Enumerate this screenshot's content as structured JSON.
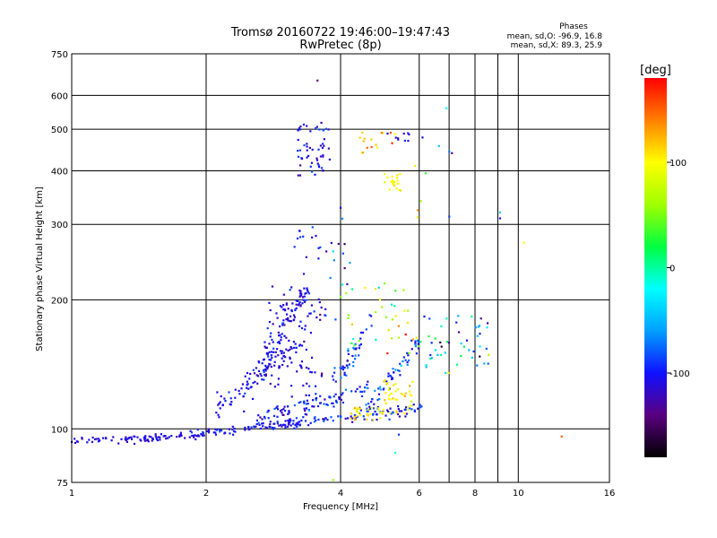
{
  "chart_data": {
    "type": "scatter",
    "title": "Tromsø 20160722 19:46:00–19:47:43",
    "subtitle": "RwPretec (8p)",
    "xlabel": "Frequency [MHz]",
    "ylabel": "Stationary phase Virtual Height [km]",
    "x_scale": "log",
    "y_scale": "log",
    "xlim": [
      1,
      16
    ],
    "ylim": [
      75,
      750
    ],
    "x_ticks": [
      1,
      2,
      4,
      6,
      8,
      10,
      16
    ],
    "x_tick_labels": [
      "1",
      "2",
      "4",
      "6",
      "8",
      "10",
      "16"
    ],
    "x_grid": [
      2,
      4,
      6,
      7,
      8,
      9,
      10
    ],
    "y_ticks": [
      75,
      100,
      200,
      300,
      400,
      500,
      600,
      750
    ],
    "y_tick_labels": [
      "75",
      "100",
      "200",
      "300",
      "400",
      "500",
      "600",
      "750"
    ],
    "y_grid": [
      100,
      200,
      300,
      400,
      500,
      600
    ],
    "grid": true,
    "phases_box": {
      "heading": "Phases",
      "line1": "mean, sd,O: -96.9, 16.8",
      "line2": "mean, sd,X:  89.3, 25.9"
    },
    "colorbar": {
      "label": "[deg]",
      "range": [
        -180,
        180
      ],
      "ticks": [
        -100,
        0,
        100
      ],
      "tick_labels": [
        "-100",
        "0",
        "100"
      ],
      "colors": [
        "#000000",
        "#5a0080",
        "#1010ff",
        "#00a0ff",
        "#00ffff",
        "#00ff40",
        "#a0ff00",
        "#ffff00",
        "#ff8000",
        "#ff0000"
      ]
    },
    "traces": [
      {
        "kind": "line",
        "x0": 1.0,
        "x1": 2.0,
        "y0": 93,
        "y1": 97,
        "jitter": 1.2,
        "n": 90,
        "phase": -110,
        "phase_sd": 10
      },
      {
        "kind": "line",
        "x0": 1.85,
        "x1": 3.3,
        "y0": 97,
        "y1": 104,
        "jitter": 1.5,
        "n": 80,
        "phase": -105,
        "phase_sd": 15
      },
      {
        "kind": "line",
        "x0": 3.0,
        "x1": 6.2,
        "y0": 103,
        "y1": 112,
        "jitter": 2.5,
        "n": 90,
        "phase": -100,
        "phase_sd": 20
      },
      {
        "kind": "line",
        "x0": 2.1,
        "x1": 3.3,
        "y0": 112,
        "y1": 160,
        "jitter": 5,
        "n": 70,
        "phase": -105,
        "phase_sd": 12
      },
      {
        "kind": "line",
        "x0": 2.4,
        "x1": 3.4,
        "y0": 118,
        "y1": 215,
        "jitter": 8,
        "n": 80,
        "phase": -105,
        "phase_sd": 15
      },
      {
        "kind": "line",
        "x0": 2.6,
        "x1": 3.6,
        "y0": 105,
        "y1": 120,
        "jitter": 3,
        "n": 50,
        "phase": -100,
        "phase_sd": 20
      },
      {
        "kind": "line",
        "x0": 3.3,
        "x1": 4.6,
        "y0": 110,
        "y1": 125,
        "jitter": 3,
        "n": 50,
        "phase": -100,
        "phase_sd": 25
      },
      {
        "kind": "line",
        "x0": 3.8,
        "x1": 4.7,
        "y0": 125,
        "y1": 180,
        "jitter": 8,
        "n": 45,
        "phase": -95,
        "phase_sd": 25
      },
      {
        "kind": "line",
        "x0": 4.5,
        "x1": 6.0,
        "y0": 108,
        "y1": 160,
        "jitter": 5,
        "n": 55,
        "phase": -90,
        "phase_sd": 30
      },
      {
        "kind": "cloud",
        "x0": 2.7,
        "x1": 3.7,
        "y0": 125,
        "y1": 215,
        "n": 110,
        "phase": -110,
        "phase_sd": 18
      },
      {
        "kind": "cloud",
        "x0": 3.2,
        "x1": 3.8,
        "y0": 390,
        "y1": 520,
        "n": 55,
        "phase": -105,
        "phase_sd": 20
      },
      {
        "kind": "cloud",
        "x0": 3.1,
        "x1": 3.6,
        "y0": 230,
        "y1": 300,
        "n": 12,
        "phase": -100,
        "phase_sd": 20
      },
      {
        "kind": "cloud",
        "x0": 4.2,
        "x1": 5.0,
        "y0": 105,
        "y1": 112,
        "n": 30,
        "phase": 110,
        "phase_sd": 15
      },
      {
        "kind": "cloud",
        "x0": 5.0,
        "x1": 5.8,
        "y0": 108,
        "y1": 130,
        "n": 40,
        "phase": 105,
        "phase_sd": 15
      },
      {
        "kind": "cloud",
        "x0": 5.0,
        "x1": 5.5,
        "y0": 360,
        "y1": 400,
        "n": 22,
        "phase": 100,
        "phase_sd": 15
      },
      {
        "kind": "cloud",
        "x0": 4.4,
        "x1": 5.4,
        "y0": 440,
        "y1": 500,
        "n": 16,
        "phase": 120,
        "phase_sd": 40
      },
      {
        "kind": "cloud",
        "x0": 4.0,
        "x1": 6.0,
        "y0": 150,
        "y1": 220,
        "n": 40,
        "phase": 60,
        "phase_sd": 80
      },
      {
        "kind": "cloud",
        "x0": 6.0,
        "x1": 8.6,
        "y0": 135,
        "y1": 185,
        "n": 50,
        "phase": -60,
        "phase_sd": 80
      },
      {
        "kind": "cloud",
        "x0": 5.0,
        "x1": 6.2,
        "y0": 470,
        "y1": 490,
        "n": 10,
        "phase": -110,
        "phase_sd": 10
      },
      {
        "kind": "cloud",
        "x0": 5.8,
        "x1": 7.2,
        "y0": 300,
        "y1": 470,
        "n": 6,
        "phase": 0,
        "phase_sd": 100
      },
      {
        "kind": "cloud",
        "x0": 3.5,
        "x1": 4.2,
        "y0": 170,
        "y1": 340,
        "n": 18,
        "phase": -90,
        "phase_sd": 50
      }
    ],
    "isolated_points": [
      {
        "x": 3.55,
        "y": 650,
        "phase": -140
      },
      {
        "x": 6.9,
        "y": 560,
        "phase": -20
      },
      {
        "x": 7.1,
        "y": 440,
        "phase": -130
      },
      {
        "x": 9.1,
        "y": 320,
        "phase": -40
      },
      {
        "x": 9.1,
        "y": 310,
        "phase": -100
      },
      {
        "x": 10.3,
        "y": 272,
        "phase": 100
      },
      {
        "x": 12.5,
        "y": 96,
        "phase": 150
      },
      {
        "x": 5.4,
        "y": 97,
        "phase": -90
      },
      {
        "x": 5.3,
        "y": 88,
        "phase": -20
      },
      {
        "x": 3.85,
        "y": 76,
        "phase": 60
      },
      {
        "x": 6.2,
        "y": 395,
        "phase": 30
      },
      {
        "x": 6.05,
        "y": 340,
        "phase": 60
      }
    ]
  }
}
